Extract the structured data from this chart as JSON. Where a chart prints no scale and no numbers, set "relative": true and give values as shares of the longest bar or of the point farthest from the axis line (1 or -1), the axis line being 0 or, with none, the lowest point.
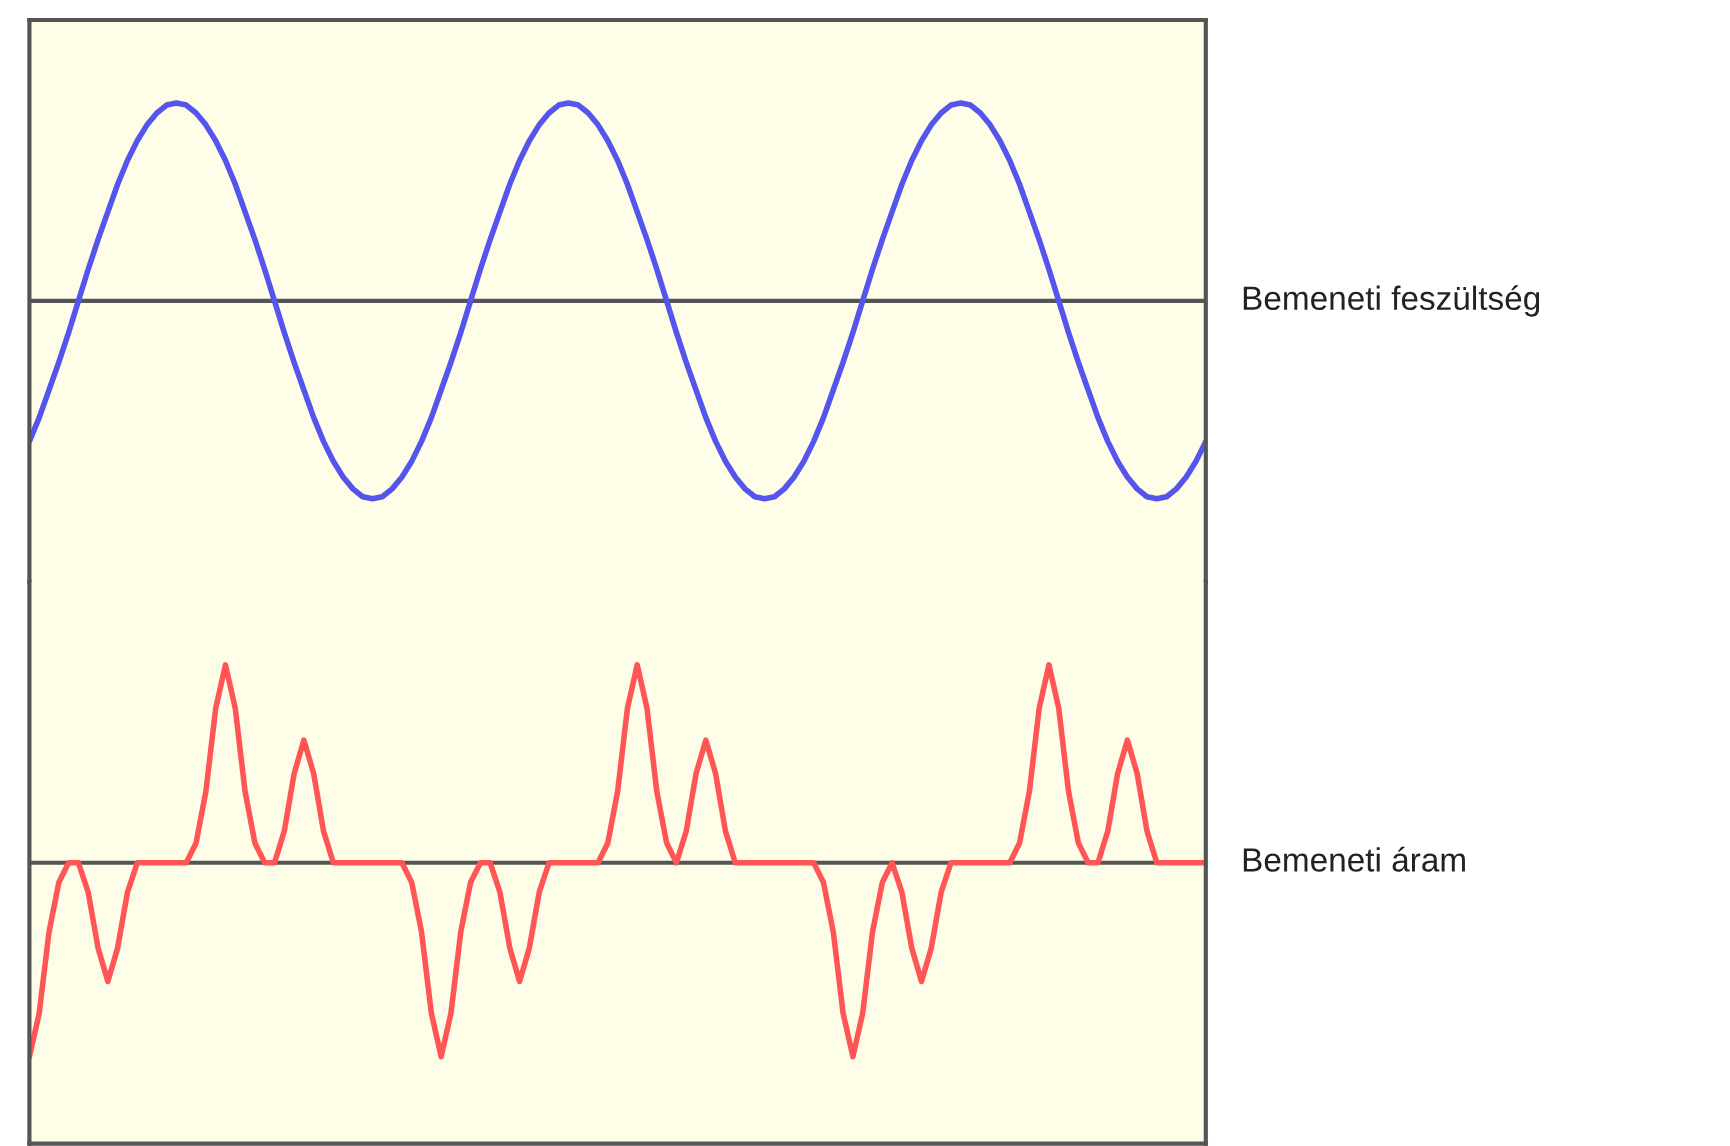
{
  "chart_data": [
    {
      "type": "line",
      "relative": true,
      "categories": [
        null,
        null,
        null,
        null,
        null,
        null,
        null,
        null,
        null,
        null,
        null,
        null,
        null,
        null,
        null,
        null,
        null,
        null,
        null,
        null,
        null,
        null,
        null,
        null,
        null,
        null,
        null,
        null,
        null,
        null,
        null,
        null,
        null,
        null,
        null,
        null,
        null,
        null,
        null,
        null,
        null,
        null,
        null,
        null,
        null,
        null,
        null,
        null,
        null,
        null,
        null,
        null,
        null,
        null,
        null,
        null,
        null,
        null,
        null,
        null,
        null,
        null,
        null,
        null,
        null,
        null,
        null,
        null,
        null,
        null,
        null,
        null,
        null,
        null,
        null,
        null,
        null,
        null,
        null,
        null,
        null,
        null,
        null,
        null,
        null,
        null,
        null,
        null,
        null,
        null,
        null,
        null,
        null,
        null,
        null,
        null,
        null,
        null,
        null,
        null,
        null,
        null,
        null,
        null,
        null,
        null,
        null,
        null,
        null,
        null,
        null,
        null,
        null,
        null,
        null,
        null,
        null,
        null,
        null,
        null,
        null
      ],
      "series": [
        {
          "name": "Bemeneti feszültség",
          "color": "#5555ee",
          "values": [
            -0.71,
            -0.59,
            -0.45,
            -0.31,
            -0.16,
            0,
            0.16,
            0.31,
            0.45,
            0.59,
            0.71,
            0.81,
            0.89,
            0.95,
            0.99,
            1,
            0.99,
            0.95,
            0.89,
            0.81,
            0.71,
            0.59,
            0.45,
            0.31,
            0.16,
            0,
            -0.16,
            -0.31,
            -0.45,
            -0.59,
            -0.71,
            -0.81,
            -0.89,
            -0.95,
            -0.99,
            -1,
            -0.99,
            -0.95,
            -0.89,
            -0.81,
            -0.71,
            -0.59,
            -0.45,
            -0.31,
            -0.16,
            0,
            0.16,
            0.31,
            0.45,
            0.59,
            0.71,
            0.81,
            0.89,
            0.95,
            0.99,
            1,
            0.99,
            0.95,
            0.89,
            0.81,
            0.71,
            0.59,
            0.45,
            0.31,
            0.16,
            0,
            -0.16,
            -0.31,
            -0.45,
            -0.59,
            -0.71,
            -0.81,
            -0.89,
            -0.95,
            -0.99,
            -1,
            -0.99,
            -0.95,
            -0.89,
            -0.81,
            -0.71,
            -0.59,
            -0.45,
            -0.31,
            -0.16,
            0,
            0.16,
            0.31,
            0.45,
            0.59,
            0.71,
            0.81,
            0.89,
            0.95,
            0.99,
            1,
            0.99,
            0.95,
            0.89,
            0.81,
            0.71,
            0.59,
            0.45,
            0.31,
            0.16,
            0,
            -0.16,
            -0.31,
            -0.45,
            -0.59,
            -0.71,
            -0.81,
            -0.89,
            -0.95,
            -0.99,
            -1,
            -0.99,
            -0.95,
            -0.89,
            -0.81,
            -0.71
          ]
        }
      ]
    },
    {
      "type": "line",
      "relative": true,
      "categories": [
        null,
        null,
        null,
        null,
        null,
        null,
        null,
        null,
        null,
        null,
        null,
        null,
        null,
        null,
        null,
        null,
        null,
        null,
        null,
        null,
        null,
        null,
        null,
        null,
        null,
        null,
        null,
        null,
        null,
        null,
        null,
        null,
        null,
        null,
        null,
        null,
        null,
        null,
        null,
        null,
        null,
        null,
        null,
        null,
        null,
        null,
        null,
        null,
        null,
        null,
        null,
        null,
        null,
        null,
        null,
        null,
        null,
        null,
        null,
        null,
        null,
        null,
        null,
        null,
        null,
        null,
        null,
        null,
        null,
        null,
        null,
        null,
        null,
        null,
        null,
        null,
        null,
        null,
        null,
        null,
        null,
        null,
        null,
        null,
        null,
        null,
        null,
        null,
        null,
        null,
        null,
        null,
        null,
        null,
        null,
        null,
        null,
        null,
        null,
        null,
        null,
        null,
        null,
        null,
        null,
        null,
        null,
        null,
        null,
        null,
        null,
        null,
        null,
        null,
        null,
        null,
        null,
        null,
        null,
        null,
        null
      ],
      "series": [
        {
          "name": "Bemeneti áram",
          "color": "#ff5555",
          "values": [
            -0.98,
            -0.76,
            -0.35,
            -0.1,
            0,
            0,
            -0.15,
            -0.43,
            -0.6,
            -0.43,
            -0.15,
            0,
            0,
            0,
            0,
            0,
            0,
            0.1,
            0.36,
            0.78,
            1,
            0.78,
            0.36,
            0.1,
            0,
            0,
            0.16,
            0.45,
            0.62,
            0.45,
            0.16,
            0,
            0,
            0,
            0,
            0,
            0,
            0,
            0,
            -0.1,
            -0.35,
            -0.76,
            -0.98,
            -0.76,
            -0.35,
            -0.1,
            0,
            0,
            -0.15,
            -0.43,
            -0.6,
            -0.43,
            -0.15,
            0,
            0,
            0,
            0,
            0,
            0,
            0.1,
            0.36,
            0.78,
            1,
            0.78,
            0.36,
            0.1,
            0,
            0.16,
            0.45,
            0.62,
            0.45,
            0.16,
            0,
            0,
            0,
            0,
            0,
            0,
            0,
            0,
            0,
            -0.1,
            -0.35,
            -0.76,
            -0.98,
            -0.76,
            -0.35,
            -0.1,
            0,
            -0.15,
            -0.43,
            -0.6,
            -0.43,
            -0.15,
            0,
            0,
            0,
            0,
            0,
            0,
            0,
            0.1,
            0.36,
            0.78,
            1,
            0.78,
            0.36,
            0.1,
            0,
            0,
            0.16,
            0.45,
            0.62,
            0.45,
            0.16,
            0,
            0,
            0,
            0,
            0,
            0
          ]
        }
      ]
    }
  ]
}
